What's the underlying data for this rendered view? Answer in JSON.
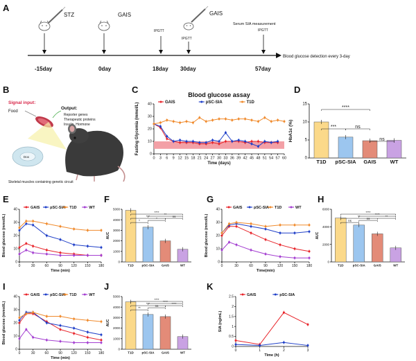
{
  "figure": {
    "panel_letters": [
      "A",
      "B",
      "C",
      "D",
      "E",
      "F",
      "G",
      "H",
      "I",
      "J",
      "K"
    ],
    "colors": {
      "gais": "#e8242a",
      "psc": "#1f3fc8",
      "t1d": "#f08a2c",
      "wt": "#a43fd1",
      "band": "#f3a0a6",
      "bar_t1d": "#fbd98a",
      "bar_psc": "#9cc6ef",
      "bar_gais": "#e38b78",
      "bar_wt": "#c9a2e3"
    }
  },
  "timeline": {
    "events": [
      {
        "label": "STZ",
        "day": "-15day"
      },
      {
        "label": "GAIS",
        "day": "0day"
      },
      {
        "label": "IPGTT",
        "day": "18day"
      },
      {
        "label": "GAIS",
        "sub": "IPGTT",
        "day": "30day"
      },
      {
        "label": "Serum SIA measurement",
        "sub": "IPGTT",
        "day": "57day"
      }
    ],
    "end_text": "Blood glucose detection every 3-day"
  },
  "schematic": {
    "signal": "Signal input:",
    "food": "Food",
    "output_title": "Output:",
    "output_lines": [
      "Reporter genes",
      "Therapeutic proteins",
      "Insulin, Hormone"
    ],
    "muscle_caption": "Skeletal muscles containing genetic circuit",
    "cell_label": "Dox"
  },
  "chart_data": [
    {
      "panel": "C",
      "type": "line",
      "title": "Blood glucose assay",
      "xlabel": "Time (days)",
      "ylabel": "Fasting Glycemia (mmol/L)",
      "xlim": [
        0,
        60
      ],
      "ylim": [
        0,
        40
      ],
      "xticks": [
        0,
        3,
        6,
        9,
        12,
        15,
        18,
        21,
        24,
        27,
        30,
        33,
        36,
        39,
        42,
        45,
        48,
        51,
        54,
        57,
        60
      ],
      "yticks": [
        0,
        10,
        20,
        30,
        40
      ],
      "normal_band": [
        4,
        10
      ],
      "series": [
        {
          "name": "GAIS",
          "x": [
            0,
            3,
            6,
            9,
            12,
            15,
            18,
            21,
            24,
            27,
            30,
            33,
            36,
            39,
            42,
            45,
            48,
            51,
            54,
            57
          ],
          "y": [
            24,
            21,
            12,
            10,
            9,
            9,
            9,
            8,
            8,
            9,
            8,
            10,
            10,
            10,
            9,
            10,
            10,
            9,
            9,
            9
          ]
        },
        {
          "name": "pSC-SIA",
          "x": [
            0,
            3,
            6,
            9,
            12,
            15,
            18,
            21,
            24,
            27,
            30,
            33,
            36,
            39,
            42,
            45,
            48,
            51,
            54,
            57
          ],
          "y": [
            24,
            22,
            14,
            10,
            11,
            10,
            10,
            9,
            9,
            11,
            10,
            17,
            10,
            11,
            10,
            8,
            6,
            10,
            9,
            10
          ]
        },
        {
          "name": "T1D",
          "x": [
            0,
            3,
            6,
            9,
            12,
            15,
            18,
            21,
            24,
            27,
            30,
            33,
            36,
            39,
            42,
            45,
            48,
            51,
            54,
            57,
            60
          ],
          "y": [
            24,
            25,
            27,
            26,
            25,
            26,
            25,
            29,
            26,
            27,
            28,
            28,
            27,
            28,
            28,
            27,
            26,
            29,
            26,
            27,
            26
          ]
        }
      ]
    },
    {
      "panel": "D",
      "type": "bar",
      "ylabel": "HbA1c (%)",
      "ylim": [
        0,
        15
      ],
      "yticks": [
        0,
        5,
        10,
        15
      ],
      "categories": [
        "T1D",
        "pSC-SIA",
        "GAIS",
        "WT"
      ],
      "values": [
        10,
        5.8,
        4.8,
        4.9
      ],
      "sig": [
        {
          "from": 0,
          "to": 1,
          "text": "***"
        },
        {
          "from": 0,
          "to": 2,
          "text": "****"
        },
        {
          "from": 1,
          "to": 2,
          "text": "ns"
        },
        {
          "from": 2,
          "to": 3,
          "text": "ns"
        }
      ]
    },
    {
      "panel": "E",
      "type": "line",
      "xlabel": "Time (min)",
      "ylabel": "Blood glucose (mmol/L)",
      "xlim": [
        0,
        180
      ],
      "ylim": [
        0,
        40
      ],
      "xticks": [
        0,
        30,
        60,
        90,
        120,
        150,
        180
      ],
      "yticks": [
        0,
        10,
        20,
        30,
        40
      ],
      "series": [
        {
          "name": "GAIS",
          "x": [
            0,
            15,
            30,
            60,
            90,
            120,
            150,
            180
          ],
          "y": [
            11,
            14,
            12,
            9,
            7,
            6,
            5,
            5
          ]
        },
        {
          "name": "pSC-SIA",
          "x": [
            0,
            15,
            30,
            60,
            90,
            120,
            150,
            180
          ],
          "y": [
            24,
            29,
            28,
            20,
            17,
            13,
            12,
            11
          ]
        },
        {
          "name": "T1D",
          "x": [
            0,
            15,
            30,
            60,
            90,
            120,
            150,
            180
          ],
          "y": [
            26,
            31,
            31,
            29,
            27,
            25,
            24,
            24
          ]
        },
        {
          "name": "WT",
          "x": [
            0,
            15,
            30,
            60,
            90,
            120,
            150,
            180
          ],
          "y": [
            6,
            9,
            7,
            6,
            5,
            5,
            5,
            5
          ]
        }
      ]
    },
    {
      "panel": "F",
      "type": "bar",
      "ylabel": "AUC",
      "ylim": [
        0,
        5000
      ],
      "yticks": [
        0,
        1000,
        2000,
        3000,
        4000,
        5000
      ],
      "categories": [
        "T1D",
        "pSC-SIA",
        "GAIS",
        "WT"
      ],
      "values": [
        4900,
        3300,
        2000,
        1200
      ],
      "sig": [
        {
          "from": 0,
          "to": 1,
          "text": "*"
        },
        {
          "from": 0,
          "to": 2,
          "text": "***"
        },
        {
          "from": 0,
          "to": 3,
          "text": "****"
        },
        {
          "from": 1,
          "to": 2,
          "text": "*"
        },
        {
          "from": 1,
          "to": 3,
          "text": "**"
        },
        {
          "from": 2,
          "to": 3,
          "text": "ns"
        }
      ]
    },
    {
      "panel": "G",
      "type": "line",
      "xlabel": "Time(min)",
      "ylabel": "Blood glucose (mmol/L)",
      "xlim": [
        0,
        180
      ],
      "ylim": [
        0,
        40
      ],
      "xticks": [
        0,
        30,
        60,
        90,
        120,
        150,
        180
      ],
      "yticks": [
        0,
        10,
        20,
        30,
        40
      ],
      "series": [
        {
          "name": "GAIS",
          "x": [
            0,
            15,
            30,
            60,
            90,
            120,
            150,
            180
          ],
          "y": [
            20,
            27,
            27,
            22,
            17,
            13,
            10,
            8
          ]
        },
        {
          "name": "pSC-SIA",
          "x": [
            0,
            15,
            30,
            60,
            90,
            120,
            150,
            180
          ],
          "y": [
            22,
            28,
            29,
            27,
            25,
            22,
            22,
            23
          ]
        },
        {
          "name": "T1D",
          "x": [
            0,
            15,
            30,
            60,
            90,
            120,
            150,
            180
          ],
          "y": [
            22,
            29,
            30,
            29,
            27,
            28,
            28,
            28
          ]
        },
        {
          "name": "WT",
          "x": [
            0,
            15,
            30,
            60,
            90,
            120,
            150,
            180
          ],
          "y": [
            9,
            15,
            13,
            9,
            6,
            4,
            3,
            3
          ]
        }
      ]
    },
    {
      "panel": "H",
      "type": "bar",
      "ylabel": "AUC",
      "ylim": [
        0,
        6000
      ],
      "yticks": [
        0,
        2000,
        4000,
        6000
      ],
      "categories": [
        "T1D",
        "pSC-SIA",
        "GAIS",
        "WT"
      ],
      "values": [
        5000,
        4200,
        3200,
        1600
      ],
      "sig": [
        {
          "from": 0,
          "to": 1,
          "text": "ns"
        },
        {
          "from": 0,
          "to": 2,
          "text": "**"
        },
        {
          "from": 0,
          "to": 3,
          "text": "****"
        },
        {
          "from": 1,
          "to": 2,
          "text": "ns"
        },
        {
          "from": 1,
          "to": 3,
          "text": "****"
        },
        {
          "from": 2,
          "to": 3,
          "text": "**"
        }
      ]
    },
    {
      "panel": "I",
      "type": "line",
      "xlabel": "Time (min)",
      "ylabel": "Blood glucose (mmol/L)",
      "xlim": [
        0,
        180
      ],
      "ylim": [
        0,
        40
      ],
      "xticks": [
        0,
        30,
        60,
        90,
        120,
        150,
        180
      ],
      "yticks": [
        0,
        10,
        20,
        30,
        40
      ],
      "series": [
        {
          "name": "GAIS",
          "x": [
            0,
            15,
            30,
            60,
            90,
            120,
            150,
            180
          ],
          "y": [
            20,
            27,
            27,
            21,
            15,
            12,
            9,
            7
          ]
        },
        {
          "name": "pSC-SIA",
          "x": [
            0,
            15,
            30,
            60,
            90,
            120,
            150,
            180
          ],
          "y": [
            22,
            28,
            28,
            20,
            18,
            16,
            13,
            11
          ]
        },
        {
          "name": "T1D",
          "x": [
            0,
            15,
            30,
            60,
            90,
            120,
            150,
            180
          ],
          "y": [
            24,
            27,
            28,
            25,
            25,
            23,
            22,
            21
          ]
        },
        {
          "name": "WT",
          "x": [
            0,
            15,
            30,
            60,
            90,
            120,
            150,
            180
          ],
          "y": [
            8,
            15,
            9,
            7,
            6,
            5,
            5,
            5
          ]
        }
      ]
    },
    {
      "panel": "J",
      "type": "bar",
      "ylabel": "AUC",
      "ylim": [
        0,
        5000
      ],
      "yticks": [
        0,
        1000,
        2000,
        3000,
        4000,
        5000
      ],
      "categories": [
        "T1D",
        "pSC-SIA",
        "GAIS",
        "WT"
      ],
      "values": [
        4500,
        3300,
        3100,
        1200
      ],
      "sig": [
        {
          "from": 0,
          "to": 1,
          "text": "**"
        },
        {
          "from": 0,
          "to": 2,
          "text": "***"
        },
        {
          "from": 0,
          "to": 3,
          "text": "****"
        },
        {
          "from": 1,
          "to": 2,
          "text": "ns"
        },
        {
          "from": 1,
          "to": 3,
          "text": "****"
        },
        {
          "from": 2,
          "to": 3,
          "text": "****"
        }
      ]
    },
    {
      "panel": "K",
      "type": "line",
      "xlabel": "Time (h)",
      "ylabel": "SIA (ng/mL)",
      "xlim": [
        0,
        3
      ],
      "ylim": [
        0,
        2.5
      ],
      "xticks": [
        0,
        1,
        2,
        3
      ],
      "yticks": [
        0,
        0.5,
        1.0,
        1.5,
        2.0,
        2.5
      ],
      "series": [
        {
          "name": "GAIS",
          "x": [
            0,
            1,
            2,
            3
          ],
          "y": [
            0.3,
            0.1,
            1.7,
            1.1
          ]
        },
        {
          "name": "pSC-SIA",
          "x": [
            0,
            1,
            2,
            3
          ],
          "y": [
            0.1,
            0.05,
            0.2,
            0.05
          ]
        }
      ]
    }
  ]
}
